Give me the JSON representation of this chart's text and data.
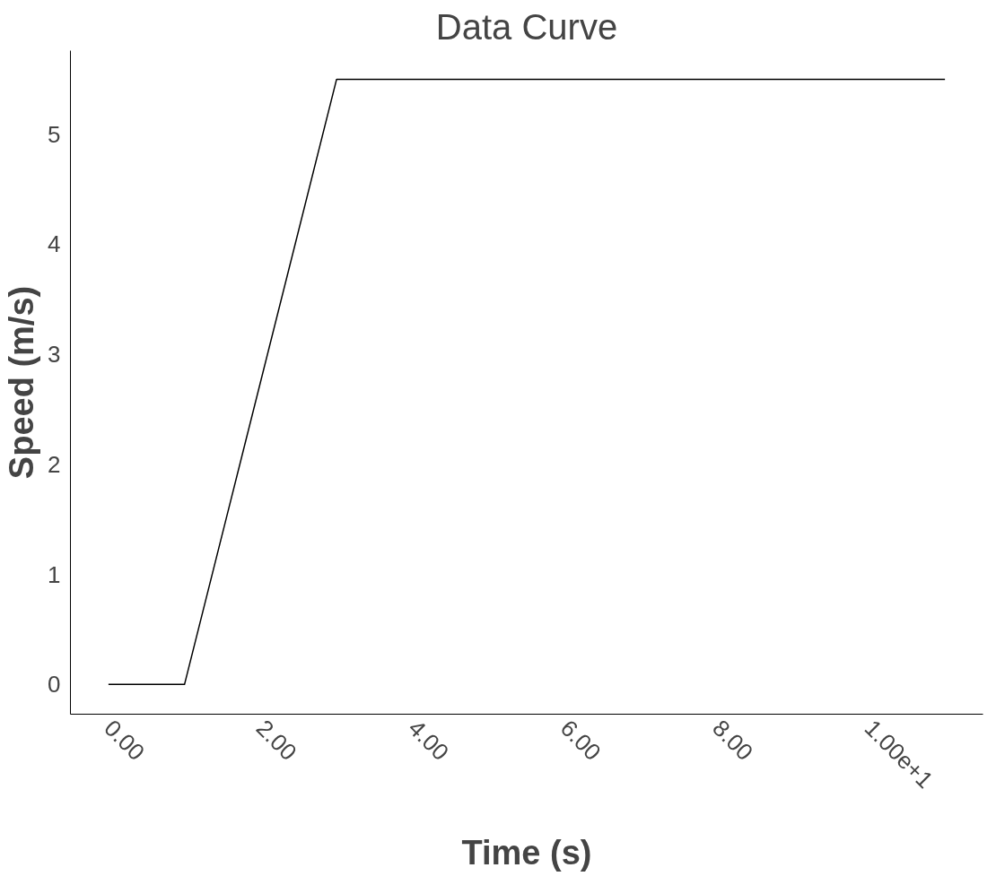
{
  "chart_data": {
    "type": "line",
    "title": "Data Curve",
    "xlabel": "Time (s)",
    "ylabel": "Speed (m/s)",
    "x": [
      0,
      1,
      3,
      11
    ],
    "series": [
      {
        "color": "#000000",
        "values": [
          0,
          0,
          5.5,
          5.5
        ]
      }
    ],
    "xlim": [
      -0.5,
      11.5
    ],
    "ylim": [
      -0.27,
      5.76
    ],
    "xticks": [
      {
        "value": 0,
        "label": "0.00"
      },
      {
        "value": 2,
        "label": "2.00"
      },
      {
        "value": 4,
        "label": "4.00"
      },
      {
        "value": 6,
        "label": "6.00"
      },
      {
        "value": 8,
        "label": "8.00"
      },
      {
        "value": 10,
        "label": "1.00e+1"
      }
    ],
    "yticks": [
      0,
      1,
      2,
      3,
      4,
      5
    ],
    "grid": false,
    "marker": "none",
    "line_style": "solid"
  }
}
